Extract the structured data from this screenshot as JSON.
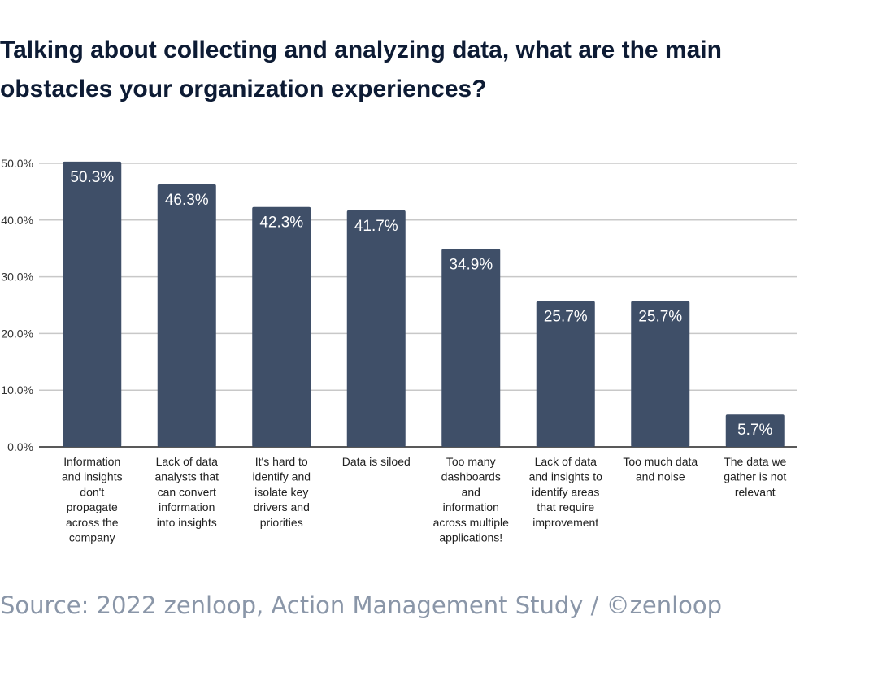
{
  "title": "Talking about collecting and analyzing data, what are the main obstacles your organization experiences?",
  "source": "Source: 2022 zenloop, Action Management Study / ©zenloop",
  "colors": {
    "bar": "#3f4f68",
    "grid": "#c8c8c8",
    "axis": "#222222",
    "title": "#0d1b34",
    "source": "#8a96a8"
  },
  "chart_data": {
    "type": "bar",
    "categories": [
      [
        "Information",
        "and insights",
        "don't",
        "propagate",
        "across the",
        "company"
      ],
      [
        "Lack of data",
        "analysts that",
        "can convert",
        "information",
        "into insights"
      ],
      [
        "It's hard to",
        "identify and",
        "isolate key",
        "drivers and",
        "priorities"
      ],
      [
        "Data is siloed"
      ],
      [
        "Too many",
        "dashboards",
        "and",
        "information",
        "across multiple",
        "applications!"
      ],
      [
        "Lack of data",
        "and insights to",
        "identify areas",
        "that require",
        "improvement"
      ],
      [
        "Too much data",
        "and noise"
      ],
      [
        "The data we",
        "gather is not",
        "relevant"
      ]
    ],
    "values": [
      50.3,
      46.3,
      42.3,
      41.7,
      34.9,
      25.7,
      25.7,
      5.7
    ],
    "data_labels": [
      "50.3%",
      "46.3%",
      "42.3%",
      "41.7%",
      "34.9%",
      "25.7%",
      "25.7%",
      "5.7%"
    ],
    "ylim": [
      0,
      50
    ],
    "yticks": [
      "0.0%",
      "10.0%",
      "20.0%",
      "30.0%",
      "40.0%",
      "50.0%"
    ],
    "grid": true,
    "legend": "none"
  }
}
